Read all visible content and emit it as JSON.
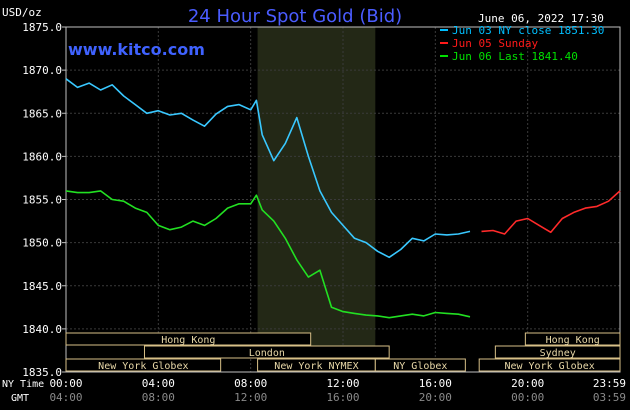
{
  "chart_data": {
    "type": "line",
    "title": "24 Hour Spot Gold (Bid)",
    "brand": "www.kitco.com",
    "date_text": "June 06, 2022 17:30",
    "ylabel": "USD/oz",
    "ylim": [
      1835.0,
      1875.0
    ],
    "y_ticks": [
      "1875.0",
      "1870.0",
      "1865.0",
      "1860.0",
      "1855.0",
      "1850.0",
      "1845.0",
      "1840.0",
      "1835.0"
    ],
    "xlim": [
      0,
      24
    ],
    "x_tick_hours": [
      0,
      4,
      8,
      12,
      16,
      20,
      24
    ],
    "x_ticks_ny": [
      "00:00",
      "04:00",
      "08:00",
      "12:00",
      "16:00",
      "20:00",
      "23:59"
    ],
    "x_ticks_gmt": [
      "04:00",
      "08:00",
      "12:00",
      "16:00",
      "20:00",
      "00:00",
      "03:59"
    ],
    "x_axis_labels": {
      "ny": "NY Time",
      "gmt": "GMT"
    },
    "shaded_hours": [
      8.3,
      13.4
    ],
    "grid": true,
    "legend": [
      {
        "text": "Jun 03 NY close 1851.30",
        "color": "#00bfff"
      },
      {
        "text": "Jun 05 Sunday",
        "color": "#ff1a1a"
      },
      {
        "text": "Jun 06 Last 1841.40",
        "color": "#00e000"
      }
    ],
    "series": [
      {
        "name": "Jun 03 NY close",
        "color": "#39c8ff",
        "x": [
          0,
          0.5,
          1,
          1.5,
          2,
          2.5,
          3,
          3.5,
          4,
          4.5,
          5,
          5.5,
          6,
          6.5,
          7,
          7.5,
          8,
          8.25,
          8.5,
          9,
          9.5,
          10,
          10.5,
          11,
          11.5,
          12,
          12.5,
          13,
          13.5,
          14,
          14.5,
          15,
          15.5,
          16,
          16.5,
          17,
          17.5
        ],
        "values": [
          1869.0,
          1868.0,
          1868.5,
          1867.7,
          1868.3,
          1867.0,
          1866.0,
          1865.0,
          1865.3,
          1864.8,
          1865.0,
          1864.2,
          1863.5,
          1864.9,
          1865.8,
          1866.0,
          1865.4,
          1866.5,
          1862.5,
          1859.5,
          1861.5,
          1864.5,
          1860.0,
          1856.0,
          1853.5,
          1852.0,
          1850.5,
          1850.0,
          1849.0,
          1848.3,
          1849.2,
          1850.5,
          1850.2,
          1851.0,
          1850.9,
          1851.0,
          1851.3
        ]
      },
      {
        "name": "Jun 05 Sunday",
        "color": "#ff2a2a",
        "x": [
          18,
          18.5,
          19,
          19.5,
          20,
          20.5,
          21,
          21.5,
          22,
          22.5,
          23,
          23.5,
          24
        ],
        "values": [
          1851.3,
          1851.4,
          1851.0,
          1852.5,
          1852.8,
          1852.0,
          1851.2,
          1852.8,
          1853.5,
          1854.0,
          1854.2,
          1854.8,
          1856.0
        ]
      },
      {
        "name": "Jun 06 Last",
        "color": "#22e022",
        "x": [
          0,
          0.5,
          1,
          1.5,
          2,
          2.5,
          3,
          3.5,
          4,
          4.5,
          5,
          5.5,
          6,
          6.5,
          7,
          7.5,
          8,
          8.25,
          8.5,
          9,
          9.5,
          10,
          10.5,
          11,
          11.5,
          12,
          12.5,
          13,
          13.5,
          14,
          14.5,
          15,
          15.5,
          16,
          16.5,
          17,
          17.5
        ],
        "values": [
          1856.0,
          1855.8,
          1855.8,
          1856.0,
          1855.0,
          1854.8,
          1854.0,
          1853.5,
          1852.0,
          1851.5,
          1851.8,
          1852.5,
          1852.0,
          1852.8,
          1854.0,
          1854.5,
          1854.5,
          1855.5,
          1853.8,
          1852.5,
          1850.5,
          1848.0,
          1846.0,
          1846.8,
          1842.5,
          1842.0,
          1841.8,
          1841.6,
          1841.5,
          1841.3,
          1841.5,
          1841.7,
          1841.5,
          1841.9,
          1841.8,
          1841.7,
          1841.4
        ]
      }
    ],
    "session_rows": [
      [
        {
          "label": "Hong Kong",
          "start": 0,
          "end": 10.6
        },
        {
          "label": "Hong Kong",
          "start": 19.9,
          "end": 24.0
        }
      ],
      [
        {
          "label": "London",
          "start": 3.4,
          "end": 14.0
        },
        {
          "label": "Sydney",
          "start": 18.6,
          "end": 24.0
        }
      ],
      [
        {
          "label": "New York Globex",
          "start": 0,
          "end": 6.7
        },
        {
          "label": "New York NYMEX",
          "start": 8.3,
          "end": 13.4
        },
        {
          "label": "NY Globex",
          "start": 13.4,
          "end": 17.3
        },
        {
          "label": "New York Globex",
          "start": 17.9,
          "end": 24.0
        }
      ]
    ]
  }
}
